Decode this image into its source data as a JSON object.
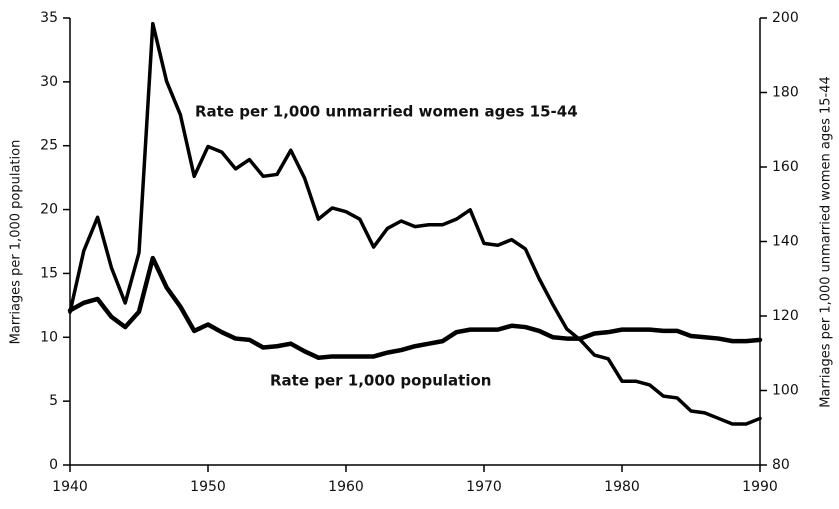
{
  "chart_data": {
    "type": "line",
    "ylabel": "Marriages per 1,000 population",
    "y2label": "Marriages per 1,000 unmarried women ages 15-44",
    "annotations": [
      "Rate per 1,000 unmarried women ages 15-44",
      "Rate per 1,000 population"
    ],
    "x": [
      1940,
      1941,
      1942,
      1943,
      1944,
      1945,
      1946,
      1947,
      1948,
      1949,
      1950,
      1951,
      1952,
      1953,
      1954,
      1955,
      1956,
      1957,
      1958,
      1959,
      1960,
      1961,
      1962,
      1963,
      1964,
      1965,
      1966,
      1967,
      1968,
      1969,
      1970,
      1971,
      1972,
      1973,
      1974,
      1975,
      1976,
      1977,
      1978,
      1979,
      1980,
      1981,
      1982,
      1983,
      1984,
      1985,
      1986,
      1987,
      1988,
      1989,
      1990
    ],
    "series": [
      {
        "name": "Rate per 1,000 population",
        "color": "#000000",
        "axis": "y",
        "values": [
          12.1,
          12.7,
          13.0,
          11.6,
          10.8,
          12.0,
          16.2,
          13.9,
          12.4,
          10.5,
          11.0,
          10.4,
          9.9,
          9.8,
          9.2,
          9.3,
          9.5,
          8.9,
          8.4,
          8.5,
          8.5,
          8.5,
          8.5,
          8.8,
          9.0,
          9.3,
          9.5,
          9.7,
          10.4,
          10.6,
          10.6,
          10.6,
          10.9,
          10.8,
          10.5,
          10.0,
          9.9,
          9.9,
          10.3,
          10.4,
          10.6,
          10.6,
          10.6,
          10.5,
          10.5,
          10.1,
          10.0,
          9.9,
          9.7,
          9.7,
          9.8
        ]
      },
      {
        "name": "Rate per 1,000 unmarried women ages 15-44",
        "color": "#000000",
        "axis": "y2",
        "values": [
          121,
          137.5,
          146.5,
          133,
          123.5,
          137,
          198.5,
          183,
          174,
          157.5,
          165.5,
          164,
          159.5,
          162,
          157.5,
          158,
          164.5,
          157,
          146,
          149,
          148,
          146,
          138.5,
          143.5,
          145.5,
          144,
          144.5,
          144.5,
          146,
          148.5,
          139.5,
          139,
          140.5,
          138,
          130,
          123,
          116.5,
          113.5,
          109.5,
          108.5,
          102.5,
          102.5,
          101.5,
          98.5,
          98,
          94.5,
          94,
          92.5,
          91,
          91,
          92.5
        ]
      }
    ],
    "xlim": [
      1940,
      1990
    ],
    "xticks": [
      1940,
      1950,
      1960,
      1970,
      1980,
      1990
    ],
    "ylim": [
      0,
      35
    ],
    "yticks": [
      0,
      5,
      10,
      15,
      20,
      25,
      30,
      35
    ],
    "y2lim": [
      80,
      200
    ],
    "y2ticks": [
      80,
      100,
      120,
      140,
      160,
      180,
      200
    ]
  }
}
